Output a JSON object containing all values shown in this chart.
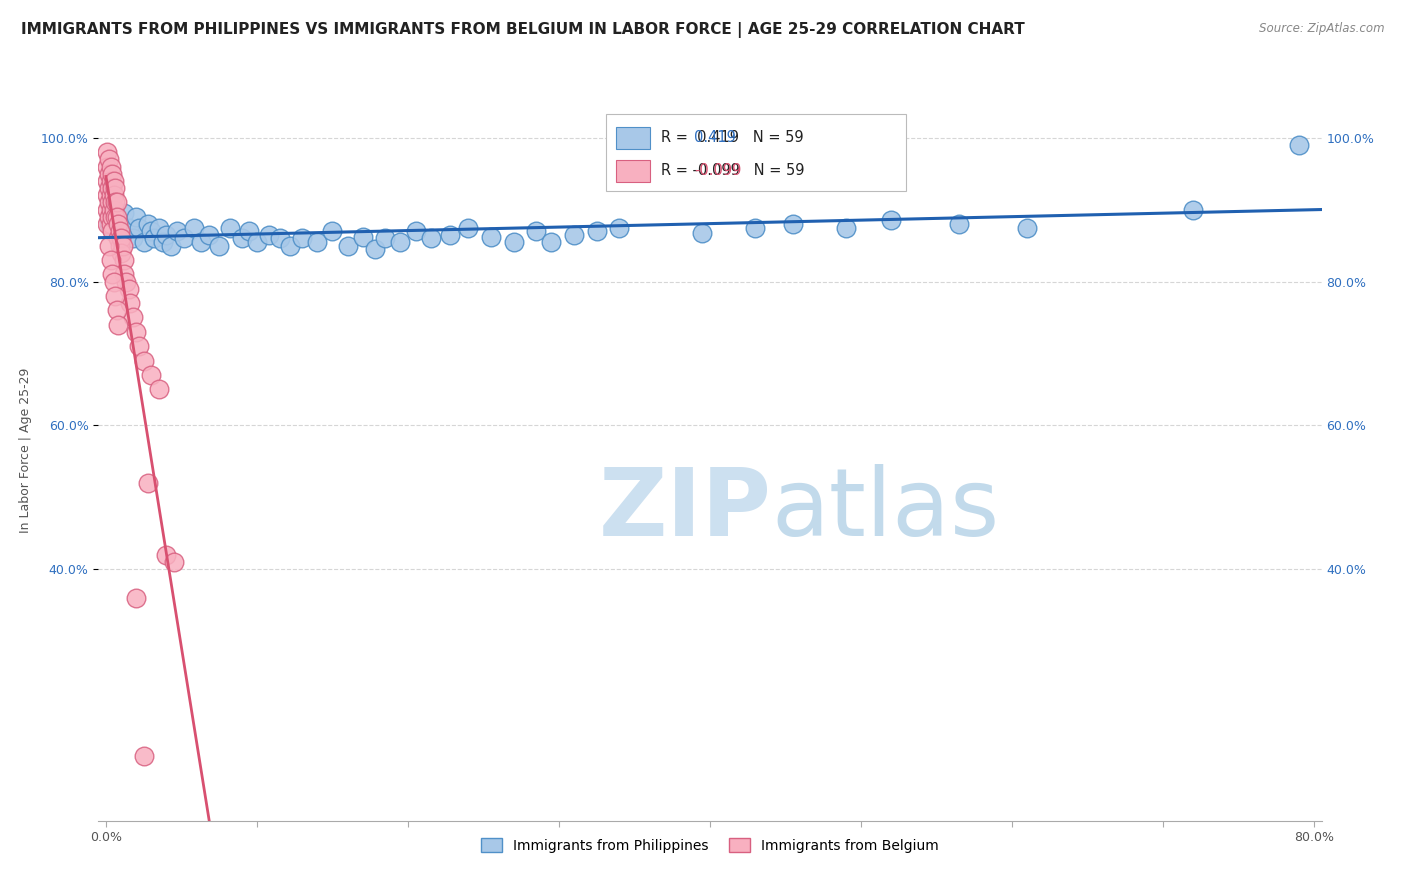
{
  "title": "IMMIGRANTS FROM PHILIPPINES VS IMMIGRANTS FROM BELGIUM IN LABOR FORCE | AGE 25-29 CORRELATION CHART",
  "source": "Source: ZipAtlas.com",
  "ylabel": "In Labor Force | Age 25-29",
  "r_blue": 0.419,
  "r_pink": -0.099,
  "n_blue": 59,
  "n_pink": 59,
  "xlim": [
    -0.005,
    0.805
  ],
  "ylim": [
    0.05,
    1.08
  ],
  "xtick_labels": [
    "0.0%",
    "",
    "",
    "",
    "",
    "",
    "",
    "",
    "80.0%"
  ],
  "ytick_labels": [
    "40.0%",
    "60.0%",
    "80.0%",
    "100.0%"
  ],
  "ytick_vals": [
    0.4,
    0.6,
    0.8,
    1.0
  ],
  "xtick_vals": [
    0.0,
    0.1,
    0.2,
    0.3,
    0.4,
    0.5,
    0.6,
    0.7,
    0.8
  ],
  "blue_scatter_x": [
    0.002,
    0.003,
    0.005,
    0.008,
    0.01,
    0.012,
    0.015,
    0.018,
    0.02,
    0.022,
    0.025,
    0.028,
    0.03,
    0.032,
    0.035,
    0.038,
    0.04,
    0.043,
    0.047,
    0.052,
    0.058,
    0.063,
    0.068,
    0.075,
    0.082,
    0.09,
    0.095,
    0.1,
    0.108,
    0.115,
    0.122,
    0.13,
    0.14,
    0.15,
    0.16,
    0.17,
    0.178,
    0.185,
    0.195,
    0.205,
    0.215,
    0.228,
    0.24,
    0.255,
    0.27,
    0.285,
    0.295,
    0.31,
    0.325,
    0.34,
    0.395,
    0.43,
    0.455,
    0.49,
    0.52,
    0.565,
    0.61,
    0.72,
    0.79
  ],
  "blue_scatter_y": [
    0.88,
    0.875,
    0.9,
    0.885,
    0.87,
    0.895,
    0.875,
    0.86,
    0.89,
    0.875,
    0.855,
    0.88,
    0.87,
    0.86,
    0.875,
    0.855,
    0.865,
    0.85,
    0.87,
    0.86,
    0.875,
    0.855,
    0.865,
    0.85,
    0.875,
    0.86,
    0.87,
    0.855,
    0.865,
    0.86,
    0.85,
    0.86,
    0.855,
    0.87,
    0.85,
    0.862,
    0.845,
    0.86,
    0.855,
    0.87,
    0.86,
    0.865,
    0.875,
    0.862,
    0.855,
    0.87,
    0.855,
    0.865,
    0.87,
    0.875,
    0.868,
    0.875,
    0.88,
    0.875,
    0.885,
    0.88,
    0.875,
    0.9,
    0.99
  ],
  "pink_scatter_x": [
    0.001,
    0.001,
    0.001,
    0.001,
    0.001,
    0.001,
    0.002,
    0.002,
    0.002,
    0.002,
    0.002,
    0.003,
    0.003,
    0.003,
    0.003,
    0.003,
    0.004,
    0.004,
    0.004,
    0.004,
    0.004,
    0.005,
    0.005,
    0.005,
    0.006,
    0.006,
    0.006,
    0.007,
    0.007,
    0.008,
    0.008,
    0.009,
    0.009,
    0.01,
    0.01,
    0.011,
    0.012,
    0.012,
    0.013,
    0.015,
    0.016,
    0.018,
    0.02,
    0.022,
    0.025,
    0.028,
    0.03,
    0.035,
    0.04,
    0.045,
    0.002,
    0.003,
    0.004,
    0.005,
    0.006,
    0.007,
    0.008,
    0.02,
    0.025
  ],
  "pink_scatter_y": [
    0.98,
    0.96,
    0.94,
    0.92,
    0.9,
    0.88,
    0.97,
    0.95,
    0.93,
    0.91,
    0.89,
    0.96,
    0.94,
    0.92,
    0.9,
    0.88,
    0.95,
    0.93,
    0.91,
    0.89,
    0.87,
    0.94,
    0.92,
    0.9,
    0.93,
    0.91,
    0.89,
    0.91,
    0.89,
    0.88,
    0.86,
    0.87,
    0.85,
    0.86,
    0.84,
    0.85,
    0.83,
    0.81,
    0.8,
    0.79,
    0.77,
    0.75,
    0.73,
    0.71,
    0.69,
    0.52,
    0.67,
    0.65,
    0.42,
    0.41,
    0.85,
    0.83,
    0.81,
    0.8,
    0.78,
    0.76,
    0.74,
    0.36,
    0.14
  ],
  "legend_label_blue": "Immigrants from Philippines",
  "legend_label_pink": "Immigrants from Belgium",
  "blue_scatter_color": "#a8c8e8",
  "blue_scatter_edge": "#5090c8",
  "pink_scatter_color": "#f8b0c0",
  "pink_scatter_edge": "#d86080",
  "blue_line_color": "#2060b0",
  "pink_line_color": "#d85070",
  "pink_dash_color": "#e898a8",
  "blue_text_color": "#3070c0",
  "watermark_color": "#cce0f0",
  "title_fontsize": 11,
  "tick_fontsize": 9,
  "ylabel_fontsize": 9
}
